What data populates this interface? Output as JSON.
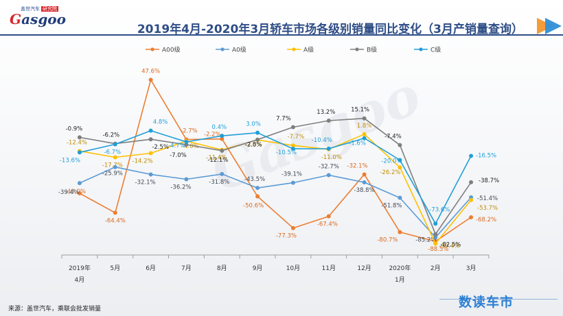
{
  "header": {
    "logo_top": "盖世汽车",
    "logo_badge": "研究院",
    "logo_word": "asgoo",
    "logo_letter": "G",
    "title": "2019年4月-2020年3月轿车市场各级别销量同比变化（3月产销量查询）"
  },
  "watermark": "Gasgoo",
  "footer": {
    "source": "来源：盖世汽车，乘联会批发销量",
    "brand": "数读车市"
  },
  "colors": {
    "A00": "#ed7d31",
    "A0": "#5b9bd5",
    "A": "#ffc000",
    "B": "#7f7f7f",
    "C": "#1f9fd8",
    "title": "#2e4d86"
  },
  "chart_data": {
    "type": "line",
    "title": "2019年4月-2020年3月轿车市场各级别销量同比变化（3月产销量查询）",
    "legend_position": "top",
    "categories": [
      "2019年\n4月",
      "5月",
      "6月",
      "7月",
      "8月",
      "9月",
      "10月",
      "11月",
      "12月",
      "2020年\n1月",
      "2月",
      "3月"
    ],
    "ylim": [
      -100,
      60
    ],
    "series": [
      {
        "name": "A00级",
        "key": "A00",
        "values": [
          -48.0,
          -64.4,
          47.6,
          -2.7,
          -2.2,
          -50.6,
          -77.3,
          -67.4,
          -32.1,
          -80.7,
          -88.5,
          -68.2
        ],
        "labels": [
          "-48.0%",
          "-64.4%",
          "47.6%",
          "-2.7%",
          "-2.2%",
          "-50.6%",
          "-77.3%",
          "-67.4%",
          "-32.1%",
          "-80.7%",
          "-88.5%",
          "-68.2%"
        ]
      },
      {
        "name": "A0级",
        "key": "A0",
        "values": [
          -39.4,
          -25.9,
          -32.1,
          -36.2,
          -31.8,
          -43.5,
          -39.1,
          -32.7,
          -38.8,
          -51.8,
          -85.2,
          -51.4
        ],
        "labels": [
          "-39.4%",
          "-25.9%",
          "-32.1%",
          "-36.2%",
          "-31.8%",
          "-43.5%",
          "-39.1%",
          "-32.7%",
          "-38.8%",
          "-51.8%",
          "-85.2%",
          "-51.4%"
        ]
      },
      {
        "name": "A级",
        "key": "A",
        "values": [
          -12.4,
          -17.7,
          -14.2,
          -4.0,
          -11.4,
          -3.0,
          -7.7,
          -11.0,
          1.8,
          -26.2,
          -90.4,
          -53.7
        ],
        "labels": [
          "-12.4%",
          "-17.7%",
          "-14.2%",
          "-4.0%",
          "-11.4%",
          "-3.0%",
          "-7.7%",
          "-11.0%",
          "1.8%",
          "-26.2%",
          "-90.4%",
          "-53.7%"
        ]
      },
      {
        "name": "B级",
        "key": "B",
        "values": [
          -0.9,
          -6.2,
          -2.5,
          -7.0,
          -12.1,
          -2.8,
          7.7,
          13.2,
          15.1,
          -7.4,
          -82.5,
          -38.7
        ],
        "labels": [
          "-0.9%",
          "-6.2%",
          "-2.5%",
          "-7.0%",
          "-12.1%",
          "-2.8%",
          "7.7%",
          "13.2%",
          "15.1%",
          "-7.4%",
          "-82.5%",
          "-38.7%"
        ]
      },
      {
        "name": "C级",
        "key": "C",
        "values": [
          -13.6,
          -6.7,
          4.8,
          -4.7,
          0.4,
          3.0,
          -10.5,
          -10.4,
          -1.6,
          -20.0,
          -73.6,
          -16.5
        ],
        "labels": [
          "-13.6%",
          "-6.7%",
          "4.8%",
          "-4.7%",
          "0.4%",
          "3.0%",
          "-10.5%",
          "-10.4%",
          "-1.6%",
          "-20.0%",
          "-73.6%",
          "-16.5%"
        ]
      }
    ]
  }
}
